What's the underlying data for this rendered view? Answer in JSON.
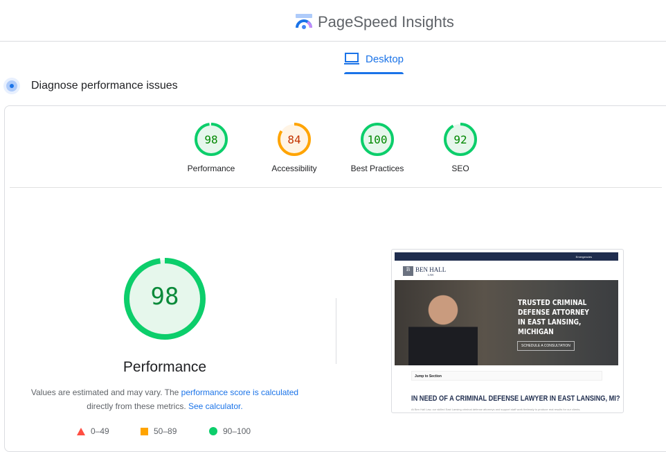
{
  "app": {
    "title": "PageSpeed Insights"
  },
  "tabs": [
    {
      "label": "Desktop",
      "icon": "laptop-icon",
      "active": true
    }
  ],
  "section": {
    "title": "Diagnose performance issues"
  },
  "colors": {
    "pass": "#0cce6b",
    "average": "#ffa400",
    "accent": "#1a73e8"
  },
  "scores": [
    {
      "label": "Performance",
      "value": "98",
      "fraction": 0.98,
      "status": "pass"
    },
    {
      "label": "Accessibility",
      "value": "84",
      "fraction": 0.84,
      "status": "average"
    },
    {
      "label": "Best Practices",
      "value": "100",
      "fraction": 1.0,
      "status": "pass"
    },
    {
      "label": "SEO",
      "value": "92",
      "fraction": 0.92,
      "status": "pass"
    }
  ],
  "performance": {
    "value": "98",
    "fraction": 0.98,
    "title": "Performance",
    "desc_prefix": "Values are estimated and may vary. The ",
    "link1": "performance score is calculated",
    "desc_mid": " directly from these metrics. ",
    "link2": "See calculator."
  },
  "legend": [
    {
      "shape": "triangle",
      "range": "0–49",
      "color": "#ff4e42"
    },
    {
      "shape": "square",
      "range": "50–89",
      "color": "#ffa400"
    },
    {
      "shape": "circle",
      "range": "90–100",
      "color": "#0cce6b"
    }
  ],
  "screenshot": {
    "topbar": "Emergencies",
    "brand": "BEN HALL",
    "brand_sub": "LAW",
    "headline": "TRUSTED CRIMINAL DEFENSE ATTORNEY IN EAST LANSING, MICHIGAN",
    "cta": "SCHEDULE A CONSULTATION",
    "jump": "Jump to Section",
    "heading": "IN NEED OF A CRIMINAL DEFENSE LAWYER IN EAST LANSING, MI?",
    "body": "At Ben Hall Law, our skilled East Lansing criminal defense attorneys and support staff work tirelessly to produce real results for our clients."
  }
}
